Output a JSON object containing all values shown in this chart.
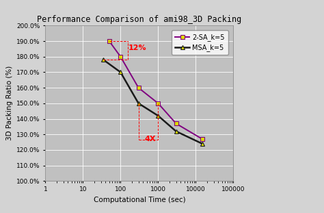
{
  "title": "Performance Comparison of ami98_3D Packing",
  "xlabel": "Computational Time (sec)",
  "ylabel": "3D Packing Ratio (%)",
  "xlim": [
    1,
    100000
  ],
  "ylim": [
    1.0,
    2.0
  ],
  "yticks": [
    1.0,
    1.1,
    1.2,
    1.3,
    1.4,
    1.5,
    1.6,
    1.7,
    1.8,
    1.9,
    2.0
  ],
  "ytick_labels": [
    "100.0%",
    "110.0%",
    "120.0%",
    "130.0%",
    "140.0%",
    "150.0%",
    "160.0%",
    "170.0%",
    "180.0%",
    "190.0%",
    "200.0%"
  ],
  "xticks": [
    1,
    10,
    100,
    1000,
    10000,
    100000
  ],
  "xtick_labels": [
    "1",
    "10",
    "100",
    "1000",
    "10000",
    "100000"
  ],
  "sa_x": [
    50,
    100,
    300,
    1000,
    3000,
    15000
  ],
  "sa_y": [
    1.9,
    1.8,
    1.6,
    1.5,
    1.37,
    1.27
  ],
  "msa_x": [
    35,
    100,
    300,
    1000,
    3000,
    15000
  ],
  "msa_y": [
    1.78,
    1.7,
    1.5,
    1.42,
    1.32,
    1.24
  ],
  "sa_color": "#800080",
  "sa_marker_color": "#dddd00",
  "msa_color": "#1a1a1a",
  "msa_marker_color": "#dddd00",
  "sa_label": "2-SA_k=5",
  "msa_label": "MSA_k=5",
  "ann12_x": 160,
  "ann12_y": 1.845,
  "ann4x_x": 430,
  "ann4x_y": 1.255,
  "h1_x0": 50,
  "h1_x1": 155,
  "h1_y": 1.9,
  "h2_x0": 35,
  "h2_x1": 155,
  "h2_y": 1.78,
  "hv_x": 155,
  "hv_y0": 1.78,
  "hv_y1": 1.9,
  "v1_x": 300,
  "v1_y0": 1.5,
  "v1_y1": 1.265,
  "v2_x": 1000,
  "v2_y0": 1.5,
  "v2_y1": 1.265,
  "hb_x0": 300,
  "hb_x1": 1000,
  "hb_y": 1.265,
  "plot_bg_color": "#c0c0c0",
  "fig_bg_color": "#d3d3d3",
  "outer_bg": "#e8e8e8",
  "grid_color": "#ffffff",
  "title_fontsize": 8.5,
  "label_fontsize": 7.5,
  "tick_fontsize": 6.5,
  "legend_fontsize": 7
}
